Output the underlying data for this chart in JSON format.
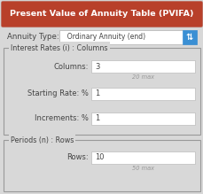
{
  "title": "Present Value of Annuity Table (PVIFA)",
  "title_bg": "#b8402a",
  "title_color": "#ffffff",
  "body_bg": "#d8d8d8",
  "annuity_label": "Annuity Type:",
  "annuity_value": "  Ordinary Annuity (end)",
  "section1_label": "Interest Rates (i) : Columns",
  "col_label": "Columns:",
  "col_value": "3",
  "col_note": "20 max",
  "rate_label": "Starting Rate: %",
  "rate_value": "1",
  "inc_label": "Increments: %",
  "inc_value": "1",
  "section2_label": "Periods (n) : Rows",
  "rows_label": "Rows:",
  "rows_value": "10",
  "rows_note": "50 max",
  "dropdown_bg": "#3a8fd4",
  "input_bg": "#ffffff",
  "input_border": "#bbbbbb",
  "section_border": "#999999",
  "label_color": "#444444",
  "note_color": "#999999",
  "figw": 2.3,
  "figh": 2.19,
  "dpi": 100
}
